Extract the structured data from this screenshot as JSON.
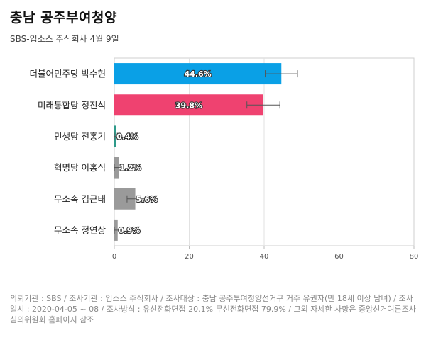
{
  "title": "충남 공주부여청양",
  "subtitle": "SBS-입소스 주식회사 4월 9일",
  "chart_data": {
    "type": "bar",
    "orientation": "horizontal",
    "categories": [
      "더불어민주당 박수현",
      "미래통합당 정진석",
      "민생당 전홍기",
      "혁명당 이홍식",
      "무소속 김근태",
      "무소속 정연상"
    ],
    "values": [
      44.6,
      39.8,
      0.4,
      1.2,
      5.6,
      0.9
    ],
    "value_labels": [
      "44.6%",
      "39.8%",
      "0.4%",
      "1.2%",
      "5.6%",
      "0.9%"
    ],
    "error_low": [
      40.3,
      35.4,
      0.0,
      0.0,
      3.4,
      0.0
    ],
    "error_high": [
      48.9,
      44.2,
      0.8,
      2.4,
      10.0,
      1.8
    ],
    "colors": [
      "#0aa0e6",
      "#ef4270",
      "#2e9a8a",
      "#9a9a9a",
      "#9a9a9a",
      "#9a9a9a"
    ],
    "xlim": [
      0,
      80
    ],
    "xticks": [
      0,
      20,
      40,
      60,
      80
    ],
    "xtick_labels": [
      "0",
      "20",
      "40",
      "60",
      "80"
    ],
    "grid": true
  },
  "footnote": "의뢰기관 : SBS / 조사기관 : 입소스 주식회사 / 조사대상 : 충남 공주부여청양선거구 거주 유권자(만 18세 이상 남녀) / 조사일시 : 2020-04-05 ~ 08 / 조사방식 : 유선전화면접 20.1% 무선전화면접 79.9% / 그외 자세한 사항은 중앙선거여론조사심의위원회 홈페이지 참조"
}
